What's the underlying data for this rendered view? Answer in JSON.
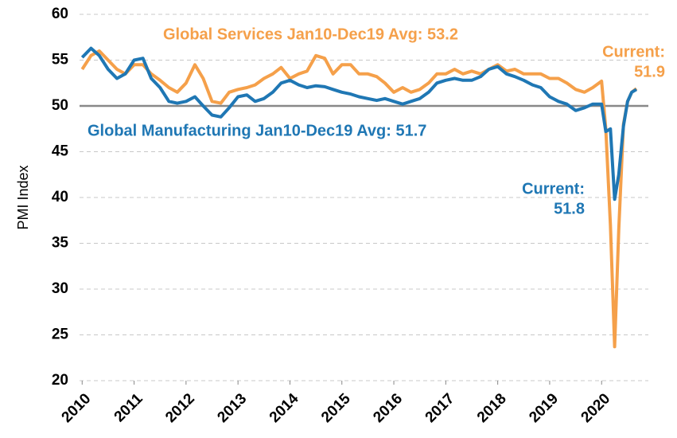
{
  "chart_data": {
    "type": "line",
    "y_label": "PMI Index",
    "xlim": [
      2009.95,
      2020.9
    ],
    "xticks": [
      2010,
      2011,
      2012,
      2013,
      2014,
      2015,
      2016,
      2017,
      2018,
      2019,
      2020
    ],
    "ylim": [
      20,
      60
    ],
    "yticks": [
      20,
      25,
      30,
      35,
      40,
      45,
      50,
      55,
      60
    ],
    "grid": true,
    "reference_line": 50,
    "x": [
      2010.0,
      2010.17,
      2010.33,
      2010.5,
      2010.67,
      2010.83,
      2011.0,
      2011.17,
      2011.33,
      2011.5,
      2011.67,
      2011.83,
      2012.0,
      2012.17,
      2012.33,
      2012.5,
      2012.67,
      2012.83,
      2013.0,
      2013.17,
      2013.33,
      2013.5,
      2013.67,
      2013.83,
      2014.0,
      2014.17,
      2014.33,
      2014.5,
      2014.67,
      2014.83,
      2015.0,
      2015.17,
      2015.33,
      2015.5,
      2015.67,
      2015.83,
      2016.0,
      2016.17,
      2016.33,
      2016.5,
      2016.67,
      2016.83,
      2017.0,
      2017.17,
      2017.33,
      2017.5,
      2017.67,
      2017.83,
      2018.0,
      2018.17,
      2018.33,
      2018.5,
      2018.67,
      2018.83,
      2019.0,
      2019.17,
      2019.33,
      2019.5,
      2019.67,
      2019.83,
      2020.0,
      2020.08,
      2020.17,
      2020.25,
      2020.33,
      2020.42,
      2020.5,
      2020.58,
      2020.67
    ],
    "series": [
      {
        "name": "Global Manufacturing",
        "color": "#1f77b4",
        "values": [
          55.3,
          56.3,
          55.5,
          54,
          53,
          53.5,
          55,
          55.2,
          53,
          52,
          50.5,
          50.3,
          50.5,
          51,
          50,
          49,
          48.8,
          49.8,
          51,
          51.2,
          50.5,
          50.8,
          51.5,
          52.5,
          52.8,
          52.3,
          52,
          52.2,
          52.1,
          51.8,
          51.5,
          51.3,
          51,
          50.8,
          50.6,
          50.8,
          50.5,
          50.2,
          50.5,
          50.8,
          51.5,
          52.5,
          52.8,
          53,
          52.8,
          52.8,
          53.2,
          54,
          54.3,
          53.5,
          53.2,
          52.8,
          52.3,
          52,
          51,
          50.5,
          50.2,
          49.5,
          49.8,
          50.2,
          50.2,
          47.2,
          47.5,
          39.8,
          42.5,
          47.8,
          50.5,
          51.5,
          51.8
        ]
      },
      {
        "name": "Global Services",
        "color": "#f5a04a",
        "values": [
          54,
          55.5,
          56,
          55,
          54,
          53.5,
          54.5,
          54.5,
          53.5,
          52.8,
          52,
          51.5,
          52.5,
          54.5,
          53,
          50.5,
          50.3,
          51.5,
          51.8,
          52,
          52.3,
          53,
          53.5,
          54.2,
          53,
          53.5,
          53.8,
          55.5,
          55.2,
          53.5,
          54.5,
          54.5,
          53.5,
          53.5,
          53.2,
          52.5,
          51.5,
          52,
          51.5,
          51.8,
          52.5,
          53.5,
          53.5,
          54,
          53.5,
          53.8,
          53.5,
          54,
          54.5,
          53.8,
          54,
          53.5,
          53.5,
          53.5,
          53,
          53,
          52.5,
          51.8,
          51.5,
          52,
          52.7,
          47.5,
          37,
          23.7,
          36.5,
          48,
          50.5,
          51.5,
          51.9
        ]
      }
    ],
    "annotations": [
      {
        "text": "Global Services Jan10-Dec19  Avg: 53.2",
        "series": 1
      },
      {
        "text": "Global Manufacturing  Jan10-Dec19  Avg: 51.7",
        "series": 0
      },
      {
        "text": "Current:",
        "series": 1
      },
      {
        "text": "51.9",
        "series": 1
      },
      {
        "text": "Current:",
        "series": 0
      },
      {
        "text": "51.8",
        "series": 0
      }
    ]
  }
}
